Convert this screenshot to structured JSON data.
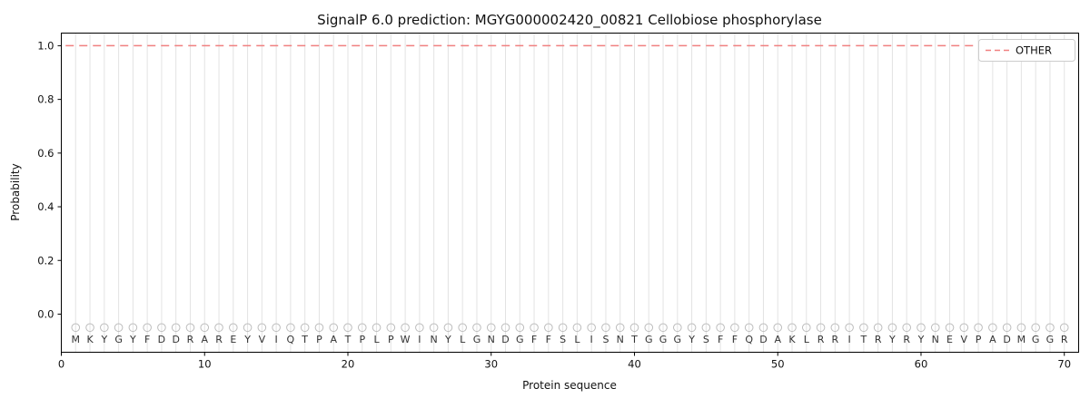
{
  "chart_data": {
    "type": "line",
    "title": "SignalP 6.0 prediction: MGYG000002420_00821 Cellobiose phosphorylase",
    "xlabel": "Protein sequence",
    "ylabel": "Probability",
    "xlim": [
      0,
      71
    ],
    "ylim": [
      -0.142,
      1.047
    ],
    "x_ticks": [
      0,
      10,
      20,
      30,
      40,
      50,
      60,
      70
    ],
    "y_ticks": [
      0.0,
      0.2,
      0.4,
      0.6,
      0.8,
      1.0
    ],
    "grid": {
      "vertical_per_residue": true,
      "color": "#e3e3e3"
    },
    "series": [
      {
        "name": "OTHER",
        "style": "dashed",
        "color": "#f08080",
        "x_start": 1,
        "x_end": 70,
        "constant_value": 1.0
      }
    ],
    "sequence": "MKYGYFDDRAREYVIQTPATPLPWINYLGNDGFFSLISNTGGGYSFFQDAKLRRITRYRYNEVPADMGGR",
    "residue_markers": {
      "shape": "open-circle",
      "y": -0.05,
      "color": "#bdbdbd"
    },
    "legend": {
      "position": "upper right",
      "entries": [
        {
          "label": "OTHER",
          "color": "#f08080",
          "style": "dashed"
        }
      ]
    }
  }
}
